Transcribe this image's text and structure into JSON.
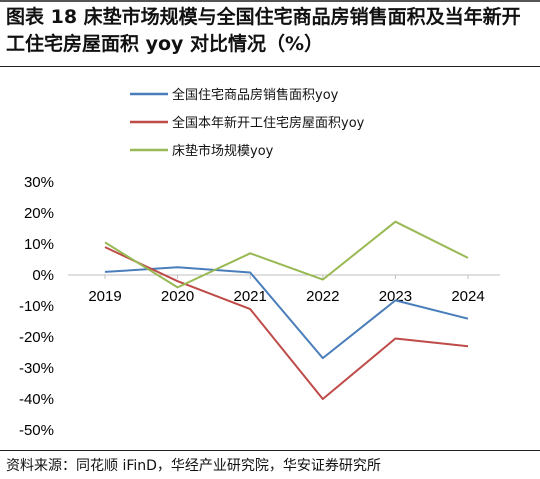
{
  "header": {
    "title": "图表 18 床垫市场规模与全国住宅商品房销售面积及当年新开工住宅房屋面积 yoy 对比情况（%）"
  },
  "footer": {
    "source": "资料来源：同花顺 iFinD，华经产业研究院，华安证券研究所"
  },
  "chart_data": {
    "type": "line",
    "title": "",
    "xlabel": "",
    "ylabel": "",
    "categories": [
      "2019",
      "2020",
      "2021",
      "2022",
      "2023",
      "2024"
    ],
    "ylim": [
      -50,
      30
    ],
    "yticks": [
      30,
      20,
      10,
      0,
      -10,
      -20,
      -30,
      -40,
      -50
    ],
    "ytick_labels": [
      "30%",
      "20%",
      "10%",
      "0%",
      "-10%",
      "-20%",
      "-30%",
      "-40%",
      "-50%"
    ],
    "legend_position": "top-center",
    "grid": false,
    "series": [
      {
        "name": "全国住宅商品房销售面积yoy",
        "color": "#4a7ebb",
        "values": [
          1.0,
          2.5,
          0.8,
          -26.8,
          -8.2,
          -14.1
        ]
      },
      {
        "name": "全国本年新开工住宅房屋面积yoy",
        "color": "#be4b48",
        "values": [
          9.0,
          -2.0,
          -11.0,
          -40.0,
          -20.5,
          -23.0
        ]
      },
      {
        "name": "床垫市场规模yoy",
        "color": "#98b954",
        "values": [
          10.5,
          -4.0,
          7.0,
          -1.5,
          17.2,
          5.5
        ]
      }
    ]
  }
}
